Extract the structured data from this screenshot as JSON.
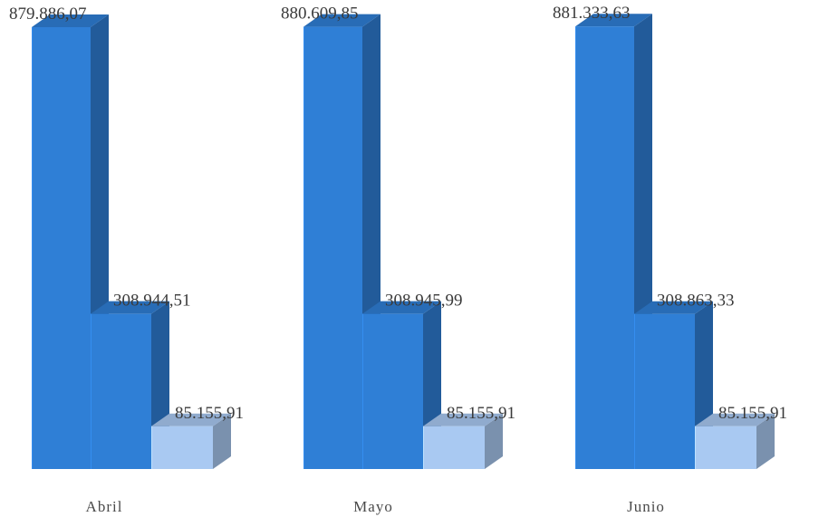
{
  "chart_data": {
    "type": "bar",
    "title": "",
    "xlabel": "",
    "ylabel": "",
    "categories": [
      "Abril",
      "Mayo",
      "Junio"
    ],
    "series": [
      {
        "values": [
          879886.07,
          880609.85,
          881333.63
        ],
        "labels": [
          "879.886,07",
          "880.609,85",
          "881.333,63"
        ],
        "color": "#2f7fd6"
      },
      {
        "values": [
          308944.51,
          308945.99,
          308863.33
        ],
        "labels": [
          "308.944,51",
          "308.945,99",
          "308.863,33"
        ],
        "color": "#2f7fd6"
      },
      {
        "values": [
          85155.91,
          85155.91,
          85155.91
        ],
        "labels": [
          "85.155,91",
          "85.155,91",
          "85.155,91"
        ],
        "color": "#a9c9f2"
      }
    ],
    "ylim": [
      0,
      1000000
    ],
    "grid": false,
    "legend": "none",
    "style": "3d-bars"
  }
}
